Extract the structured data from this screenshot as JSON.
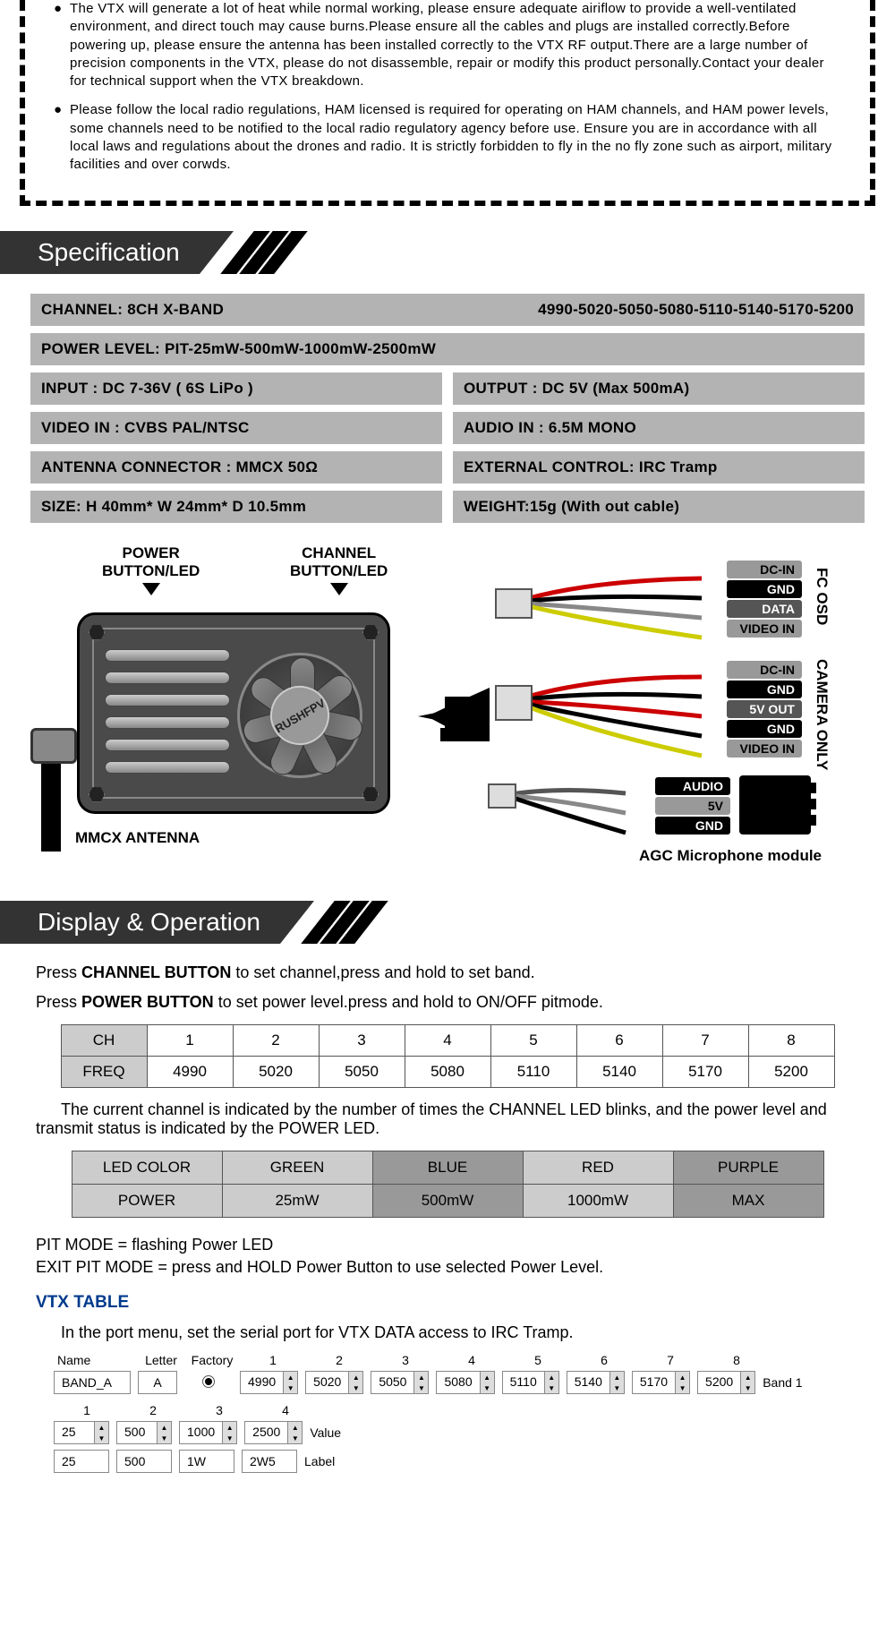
{
  "warning": {
    "p1": "The VTX will generate a lot of heat while normal working, please ensure adequate airiflow to provide a well-ventilated environment, and direct touch may cause burns.Please ensure all the cables and plugs are installed correctly.Before powering up, please ensure the antenna has been installed correctly to the VTX RF output.There are a large number of precision components in the VTX, please do not disassemble, repair or modify this product personally.Contact your dealer for technical support when the VTX breakdown.",
    "p2": "Please follow the local radio regulations, HAM licensed is required for operating on HAM channels, and HAM power levels, some channels need to be notified to the local radio regulatory agency before use. Ensure you are in accordance with all local laws and regulations about the drones and radio. It is strictly forbidden to fly in the no fly zone such as airport, military facilities and over corwds."
  },
  "sections": {
    "spec": "Specification",
    "display": "Display & Operation"
  },
  "spec": {
    "channel_label": "CHANNEL: 8CH  X-BAND",
    "channel_freqs": "4990-5020-5050-5080-5110-5140-5170-5200",
    "power_level": "POWER LEVEL: PIT-25mW-500mW-1000mW-2500mW",
    "input": "INPUT : DC 7-36V ( 6S LiPo )",
    "output": "OUTPUT : DC 5V  (Max 500mA)",
    "video_in": "VIDEO IN : CVBS PAL/NTSC",
    "audio_in": "AUDIO IN : 6.5M MONO",
    "antenna": "ANTENNA CONNECTOR : MMCX  50Ω",
    "ext_ctrl": "EXTERNAL CONTROL: IRC Tramp",
    "size": "SIZE: H 40mm* W 24mm* D 10.5mm",
    "weight": "WEIGHT:15g (With out cable)"
  },
  "diagram": {
    "power_btn": "POWER BUTTON/LED",
    "channel_btn": "CHANNEL BUTTON/LED",
    "brand": "RUSHFPV",
    "mmcx": "MMCX ANTENNA",
    "fc_osd": "FC OSD",
    "cam_only": "CAMERA ONLY",
    "agc": "AGC Microphone module",
    "fc": {
      "p1": "DC-IN",
      "p2": "GND",
      "p3": "DATA",
      "p4": "VIDEO IN"
    },
    "cam": {
      "p1": "DC-IN",
      "p2": "GND",
      "p3": "5V OUT",
      "p4": "GND",
      "p5": "VIDEO IN"
    },
    "mic": {
      "p1": "AUDIO",
      "p2": "5V",
      "p3": "GND"
    }
  },
  "operation": {
    "line1a": "Press ",
    "line1b": "CHANNEL BUTTON",
    "line1c": " to set channel,press and hold to set band.",
    "line2a": "Press ",
    "line2b": "POWER BUTTON",
    "line2c": " to set power level.press and hold to ON/OFF pitmode.",
    "freq_table": {
      "rowlabels": [
        "CH",
        "FREQ"
      ],
      "ch": [
        "1",
        "2",
        "3",
        "4",
        "5",
        "6",
        "7",
        "8"
      ],
      "freq": [
        "4990",
        "5020",
        "5050",
        "5080",
        "5110",
        "5140",
        "5170",
        "5200"
      ]
    },
    "note": "The current channel is indicated by the number of times the CHANNEL LED blinks, and the power level and transmit status is indicated by the POWER LED.",
    "led_table": {
      "r1": [
        "LED COLOR",
        "GREEN",
        "BLUE",
        "RED",
        "PURPLE"
      ],
      "r2": [
        "POWER",
        "25mW",
        "500mW",
        "1000mW",
        "MAX"
      ]
    },
    "pit": "PIT MODE = flashing Power LED",
    "exit_pit": "EXIT PIT MODE = press and HOLD Power Button to use selected Power Level.",
    "vtx_title": "VTX TABLE",
    "vtx_note": "In the port menu, set the serial port for VTX DATA access to IRC Tramp."
  },
  "vtx_ui": {
    "headers": {
      "name": "Name",
      "letter": "Letter",
      "factory": "Factory"
    },
    "cols": [
      "1",
      "2",
      "3",
      "4",
      "5",
      "6",
      "7",
      "8"
    ],
    "band_name": "BAND_A",
    "band_letter": "A",
    "band_vals": [
      "4990",
      "5020",
      "5050",
      "5080",
      "5110",
      "5140",
      "5170",
      "5200"
    ],
    "band_suffix": "Band 1",
    "pwr_cols": [
      "1",
      "2",
      "3",
      "4"
    ],
    "pwr_vals": [
      "25",
      "500",
      "1000",
      "2500"
    ],
    "pwr_suffix": "Value",
    "lbl_vals": [
      "25",
      "500",
      "1W",
      "2W5"
    ],
    "lbl_suffix": "Label"
  }
}
